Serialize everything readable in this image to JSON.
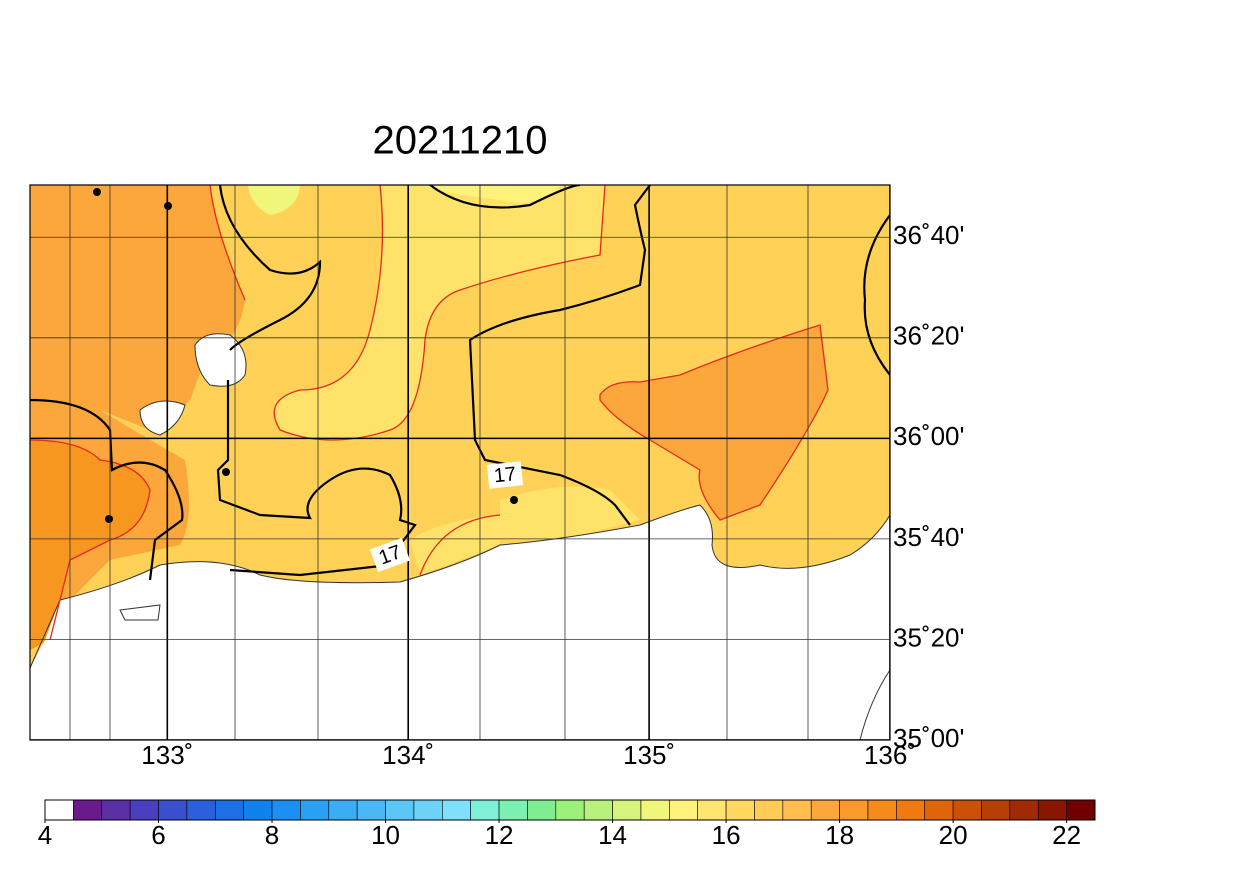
{
  "title": "20211210",
  "map": {
    "xlim": [
      132.43,
      136.0
    ],
    "ylim": [
      35.0,
      36.84
    ],
    "xticks": [
      {
        "value": 133,
        "label": "133˚"
      },
      {
        "value": 134,
        "label": "134˚"
      },
      {
        "value": 135,
        "label": "135˚"
      },
      {
        "value": 136,
        "label": "136˚"
      }
    ],
    "yticks": [
      {
        "value": 35.0,
        "label": "35˚00'"
      },
      {
        "value": 35.3333,
        "label": "35˚20'"
      },
      {
        "value": 35.6667,
        "label": "35˚40'"
      },
      {
        "value": 36.0,
        "label": "36˚00'"
      },
      {
        "value": 36.3333,
        "label": "36˚20'"
      },
      {
        "value": 36.6667,
        "label": "36˚40'"
      }
    ],
    "contour_labels": [
      "17",
      "17"
    ]
  },
  "colorbar": {
    "lim": [
      4,
      22.5
    ],
    "ticks": [
      4,
      6,
      8,
      10,
      12,
      14,
      16,
      18,
      20,
      22
    ],
    "colors": [
      "#ffffff",
      "#6a1a8a",
      "#5b2fa5",
      "#4b3fbf",
      "#3a4fd0",
      "#2b5fdc",
      "#1e6ee6",
      "#0f82f0",
      "#1a90f5",
      "#2aa0f5",
      "#3aaef5",
      "#4ab8f5",
      "#5cc6f7",
      "#6ed2f8",
      "#7ee0fa",
      "#7ef0d8",
      "#7cf0b0",
      "#80ee90",
      "#9cf07c",
      "#b8f27c",
      "#d4f47c",
      "#f0f67a",
      "#fff27a",
      "#ffe670",
      "#ffd860",
      "#ffcc56",
      "#ffbe4e",
      "#fba73c",
      "#fb9a2c",
      "#f88a1a",
      "#f07a10",
      "#e06408",
      "#cc5008",
      "#b83e08",
      "#a02a06",
      "#8a1600",
      "#700000"
    ]
  }
}
